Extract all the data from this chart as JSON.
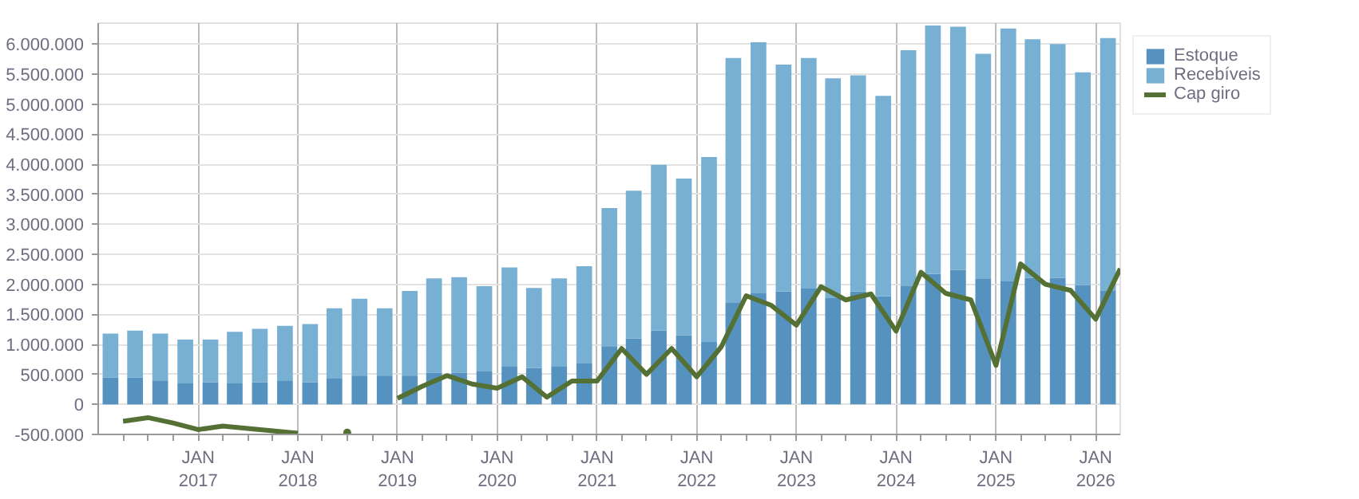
{
  "chart_data": {
    "type": "bar",
    "stacked": true,
    "x": [
      "2016-02-15",
      "2016-05-15",
      "2016-08-15",
      "2016-11-15",
      "2017-02-15",
      "2017-05-15",
      "2017-08-15",
      "2017-11-15",
      "2018-02-15",
      "2018-05-15",
      "2018-08-15",
      "2018-11-15",
      "2019-02-15",
      "2019-05-15",
      "2019-08-15",
      "2019-11-15",
      "2020-02-15",
      "2020-05-15",
      "2020-08-15",
      "2020-11-15",
      "2021-02-15",
      "2021-05-15",
      "2021-08-15",
      "2021-11-15",
      "2022-02-15",
      "2022-05-15",
      "2022-08-15",
      "2022-11-15",
      "2023-02-15",
      "2023-05-15",
      "2023-08-15",
      "2023-11-15",
      "2024-02-15",
      "2024-05-15",
      "2024-08-15",
      "2024-11-15",
      "2025-02-15",
      "2025-05-15",
      "2025-08-15",
      "2025-11-15",
      "2026-02-15"
    ],
    "series": [
      {
        "name": "Estoque",
        "color": "#5592bf",
        "values": [
          450000,
          450000,
          400000,
          350000,
          370000,
          350000,
          370000,
          400000,
          370000,
          430000,
          480000,
          480000,
          480000,
          530000,
          530000,
          560000,
          630000,
          610000,
          630000,
          690000,
          970000,
          1100000,
          1230000,
          1150000,
          1040000,
          1700000,
          1850000,
          1880000,
          1930000,
          1770000,
          1880000,
          1800000,
          1970000,
          2170000,
          2240000,
          2090000,
          2060000,
          2110000,
          2110000,
          1990000,
          1900000
        ]
      },
      {
        "name": "Recebíveis",
        "color": "#78b0d3",
        "values": [
          730000,
          780000,
          780000,
          730000,
          710000,
          860000,
          890000,
          910000,
          970000,
          1170000,
          1280000,
          1120000,
          1410000,
          1570000,
          1590000,
          1410000,
          1650000,
          1330000,
          1470000,
          1610000,
          2300000,
          2460000,
          2760000,
          2610000,
          3080000,
          4070000,
          4180000,
          3780000,
          3840000,
          3660000,
          3600000,
          3340000,
          3930000,
          4140000,
          4050000,
          3750000,
          4200000,
          3970000,
          3890000,
          3540000,
          4200000
        ]
      },
      {
        "name": "Cap giro",
        "type": "line",
        "color": "#557035",
        "x": [
          "2016-04-01",
          "2016-07-01",
          "2016-10-01",
          "2017-01-01",
          "2017-04-01",
          "2017-07-01",
          "2017-10-01",
          "2018-01-01",
          "2018-04-01",
          "2018-07-01",
          "2018-10-01",
          "2019-01-01",
          "2019-04-01",
          "2019-07-01",
          "2019-10-01",
          "2020-01-01",
          "2020-04-01",
          "2020-07-01",
          "2020-10-01",
          "2021-01-01",
          "2021-04-01",
          "2021-07-01",
          "2021-10-01",
          "2022-01-01",
          "2022-04-01",
          "2022-07-01",
          "2022-10-01",
          "2023-01-01",
          "2023-04-01",
          "2023-07-01",
          "2023-10-01",
          "2024-01-01",
          "2024-04-01",
          "2024-07-01",
          "2024-10-01",
          "2025-01-01",
          "2025-04-01",
          "2025-07-01",
          "2025-10-01",
          "2026-01-01",
          "2026-04-01"
        ],
        "values": [
          -280000,
          -220000,
          -310000,
          -420000,
          -360000,
          -400000,
          -440000,
          -480000,
          null,
          -470000,
          null,
          100000,
          300000,
          480000,
          340000,
          270000,
          460000,
          120000,
          390000,
          390000,
          930000,
          500000,
          930000,
          460000,
          960000,
          1810000,
          1650000,
          1320000,
          1960000,
          1740000,
          1840000,
          1220000,
          2200000,
          1850000,
          1740000,
          650000,
          2340000,
          2000000,
          1900000,
          1420000,
          2260000
        ]
      }
    ],
    "xlim": [
      "2016-01-01",
      "2026-04-01"
    ],
    "xticks": [
      {
        "value": "2016-04-01",
        "label": null
      },
      {
        "value": "2016-07-01",
        "label": null
      },
      {
        "value": "2016-10-01",
        "label": null
      },
      {
        "value": "2017-01-01",
        "label": "JAN\n2017"
      },
      {
        "value": "2017-04-01",
        "label": null
      },
      {
        "value": "2017-07-01",
        "label": null
      },
      {
        "value": "2017-10-01",
        "label": null
      },
      {
        "value": "2018-01-01",
        "label": "JAN\n2018"
      },
      {
        "value": "2018-04-01",
        "label": null
      },
      {
        "value": "2018-07-01",
        "label": null
      },
      {
        "value": "2018-10-01",
        "label": null
      },
      {
        "value": "2019-01-01",
        "label": "JAN\n2019"
      },
      {
        "value": "2019-04-01",
        "label": null
      },
      {
        "value": "2019-07-01",
        "label": null
      },
      {
        "value": "2019-10-01",
        "label": null
      },
      {
        "value": "2020-01-01",
        "label": "JAN\n2020"
      },
      {
        "value": "2020-04-01",
        "label": null
      },
      {
        "value": "2020-07-01",
        "label": null
      },
      {
        "value": "2020-10-01",
        "label": null
      },
      {
        "value": "2021-01-01",
        "label": "JAN\n2021"
      },
      {
        "value": "2021-04-01",
        "label": null
      },
      {
        "value": "2021-07-01",
        "label": null
      },
      {
        "value": "2021-10-01",
        "label": null
      },
      {
        "value": "2022-01-01",
        "label": "JAN\n2022"
      },
      {
        "value": "2022-04-01",
        "label": null
      },
      {
        "value": "2022-07-01",
        "label": null
      },
      {
        "value": "2022-10-01",
        "label": null
      },
      {
        "value": "2023-01-01",
        "label": "JAN\n2023"
      },
      {
        "value": "2023-04-01",
        "label": null
      },
      {
        "value": "2023-07-01",
        "label": null
      },
      {
        "value": "2023-10-01",
        "label": null
      },
      {
        "value": "2024-01-01",
        "label": "JAN\n2024"
      },
      {
        "value": "2024-04-01",
        "label": null
      },
      {
        "value": "2024-07-01",
        "label": null
      },
      {
        "value": "2024-10-01",
        "label": null
      },
      {
        "value": "2025-01-01",
        "label": "JAN\n2025"
      },
      {
        "value": "2025-04-01",
        "label": null
      },
      {
        "value": "2025-07-01",
        "label": null
      },
      {
        "value": "2025-10-01",
        "label": null
      },
      {
        "value": "2026-01-01",
        "label": "JAN\n2026"
      }
    ],
    "ylim": [
      -500000,
      6350000
    ],
    "yticks": [
      {
        "value": -500000,
        "label": "-500.000"
      },
      0,
      {
        "value": 500000,
        "label": "500.000"
      },
      {
        "value": 1000000,
        "label": "1.000.000"
      },
      {
        "value": 1500000,
        "label": "1.500.000"
      },
      {
        "value": 2000000,
        "label": "2.000.000"
      },
      {
        "value": 2500000,
        "label": "2.500.000"
      },
      {
        "value": 3000000,
        "label": "3.000.000"
      },
      {
        "value": 3500000,
        "label": "3.500.000"
      },
      {
        "value": 4000000,
        "label": "4.000.000"
      },
      {
        "value": 4500000,
        "label": "4.500.000"
      },
      {
        "value": 5000000,
        "label": "5.000.000"
      },
      {
        "value": 5500000,
        "label": "5.500.000"
      },
      {
        "value": 6000000,
        "label": "6.000.000"
      }
    ],
    "grid": true,
    "legend": "top right"
  }
}
